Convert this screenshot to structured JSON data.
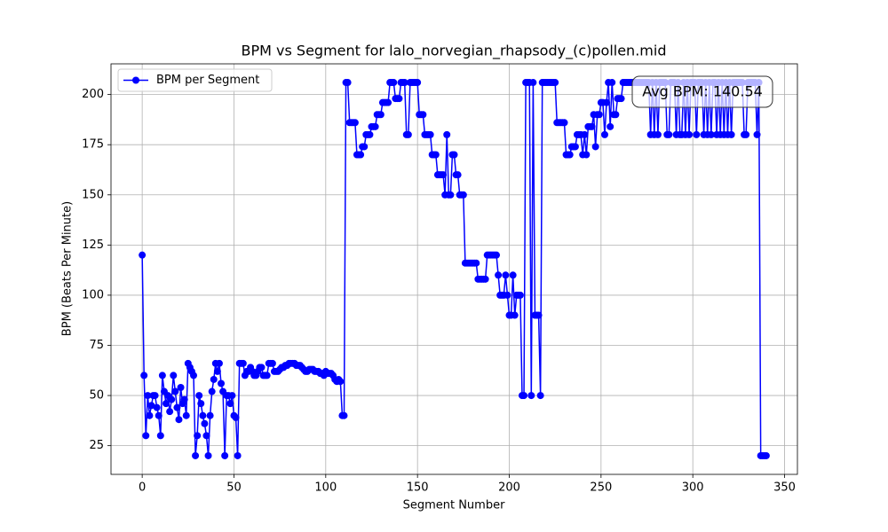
{
  "chart_data": {
    "type": "line",
    "title": "BPM vs Segment for lalo_norvegian_rhapsody_(c)pollen.mid",
    "xlabel": "Segment Number",
    "ylabel": "BPM (Beats Per Minute)",
    "annotation": "Avg BPM: 140.54",
    "legend_loc": "upper left",
    "grid": true,
    "xlim": [
      -17,
      357
    ],
    "ylim": [
      10.7,
      215.3
    ],
    "xticks": [
      0,
      50,
      100,
      150,
      200,
      250,
      300,
      350
    ],
    "yticks": [
      25,
      50,
      75,
      100,
      125,
      150,
      175,
      200
    ],
    "x": [
      0,
      1,
      2,
      3,
      4,
      5,
      6,
      7,
      8,
      9,
      10,
      11,
      12,
      13,
      14,
      15,
      16,
      17,
      18,
      19,
      20,
      21,
      22,
      23,
      24,
      25,
      26,
      27,
      28,
      29,
      30,
      31,
      32,
      33,
      34,
      35,
      36,
      37,
      38,
      39,
      40,
      41,
      42,
      43,
      44,
      45,
      46,
      47,
      48,
      49,
      50,
      51,
      52,
      53,
      54,
      55,
      56,
      57,
      58,
      59,
      60,
      61,
      62,
      63,
      64,
      65,
      66,
      67,
      68,
      69,
      70,
      71,
      72,
      73,
      74,
      75,
      76,
      77,
      78,
      79,
      80,
      81,
      82,
      83,
      84,
      85,
      86,
      87,
      88,
      89,
      90,
      91,
      92,
      93,
      94,
      95,
      96,
      97,
      98,
      99,
      100,
      101,
      102,
      103,
      104,
      105,
      106,
      107,
      108,
      109,
      110,
      111,
      112,
      113,
      114,
      115,
      116,
      117,
      118,
      119,
      120,
      121,
      122,
      123,
      124,
      125,
      126,
      127,
      128,
      129,
      130,
      131,
      132,
      133,
      134,
      135,
      136,
      137,
      138,
      139,
      140,
      141,
      142,
      143,
      144,
      145,
      146,
      147,
      148,
      149,
      150,
      151,
      152,
      153,
      154,
      155,
      156,
      157,
      158,
      159,
      160,
      161,
      162,
      163,
      164,
      165,
      166,
      167,
      168,
      169,
      170,
      171,
      172,
      173,
      174,
      175,
      176,
      177,
      178,
      179,
      180,
      181,
      182,
      183,
      184,
      185,
      186,
      187,
      188,
      189,
      190,
      191,
      192,
      193,
      194,
      195,
      196,
      197,
      198,
      199,
      200,
      201,
      202,
      203,
      204,
      205,
      206,
      207,
      208,
      209,
      210,
      211,
      212,
      213,
      214,
      215,
      216,
      217,
      218,
      219,
      220,
      221,
      222,
      223,
      224,
      225,
      226,
      227,
      228,
      229,
      230,
      231,
      232,
      233,
      234,
      235,
      236,
      237,
      238,
      239,
      240,
      241,
      242,
      243,
      244,
      245,
      246,
      247,
      248,
      249,
      250,
      251,
      252,
      253,
      254,
      255,
      256,
      257,
      258,
      259,
      260,
      261,
      262,
      263,
      264,
      265,
      266,
      267,
      268,
      269,
      270,
      271,
      272,
      273,
      274,
      275,
      276,
      277,
      278,
      279,
      280,
      281,
      282,
      283,
      284,
      285,
      286,
      287,
      288,
      289,
      290,
      291,
      292,
      293,
      294,
      295,
      296,
      297,
      298,
      299,
      300,
      301,
      302,
      303,
      304,
      305,
      306,
      307,
      308,
      309,
      310,
      311,
      312,
      313,
      314,
      315,
      316,
      317,
      318,
      319,
      320,
      321,
      322,
      323,
      324,
      325,
      326,
      327,
      328,
      329,
      330,
      331,
      332,
      333,
      334,
      335,
      336,
      337,
      338,
      339,
      340
    ],
    "series": [
      {
        "name": "BPM per Segment",
        "color": "#0000ff",
        "values": [
          120,
          60,
          30,
          50,
          40,
          45,
          50,
          50,
          44,
          40,
          30,
          60,
          52,
          46,
          50,
          42,
          48,
          60,
          52,
          44,
          38,
          54,
          46,
          48,
          40,
          66,
          64,
          62,
          60,
          20,
          30,
          50,
          46,
          40,
          36,
          30,
          20,
          40,
          52,
          58,
          66,
          62,
          66,
          56,
          52,
          20,
          50,
          50,
          46,
          50,
          40,
          39,
          20,
          66,
          66,
          66,
          60,
          62,
          62,
          64,
          62,
          60,
          60,
          62,
          64,
          64,
          60,
          60,
          60,
          66,
          66,
          66,
          62,
          62,
          62,
          63,
          64,
          64,
          65,
          65,
          66,
          66,
          66,
          66,
          65,
          65,
          65,
          64,
          63,
          62,
          62,
          63,
          63,
          63,
          62,
          62,
          62,
          61,
          61,
          60,
          62,
          61,
          61,
          61,
          60,
          58,
          57,
          58,
          57,
          40,
          40,
          206,
          206,
          186,
          186,
          186,
          186,
          170,
          170,
          170,
          174,
          174,
          180,
          180,
          180,
          184,
          184,
          184,
          190,
          190,
          190,
          196,
          196,
          196,
          196,
          206,
          206,
          206,
          198,
          198,
          198,
          206,
          206,
          206,
          180,
          180,
          206,
          206,
          206,
          206,
          206,
          190,
          190,
          190,
          180,
          180,
          180,
          180,
          170,
          170,
          170,
          160,
          160,
          160,
          160,
          150,
          180,
          150,
          150,
          170,
          170,
          160,
          160,
          150,
          150,
          150,
          116,
          116,
          116,
          116,
          116,
          116,
          116,
          108,
          108,
          108,
          108,
          108,
          120,
          120,
          120,
          120,
          120,
          120,
          110,
          100,
          100,
          100,
          110,
          100,
          90,
          90,
          110,
          90,
          100,
          100,
          100,
          50,
          50,
          206,
          206,
          206,
          50,
          206,
          90,
          90,
          90,
          50,
          206,
          206,
          206,
          206,
          206,
          206,
          206,
          206,
          186,
          186,
          186,
          186,
          186,
          170,
          170,
          170,
          174,
          174,
          174,
          180,
          180,
          180,
          170,
          180,
          170,
          184,
          184,
          184,
          190,
          174,
          190,
          190,
          196,
          196,
          180,
          196,
          206,
          184,
          206,
          190,
          190,
          198,
          198,
          198,
          206,
          206,
          206,
          206,
          206,
          206,
          206,
          206,
          206,
          206,
          206,
          206,
          206,
          206,
          206,
          180,
          206,
          180,
          206,
          180,
          206,
          206,
          206,
          206,
          180,
          180,
          206,
          206,
          206,
          180,
          206,
          180,
          180,
          206,
          180,
          206,
          180,
          206,
          206,
          206,
          180,
          206,
          206,
          206,
          180,
          206,
          180,
          206,
          180,
          206,
          206,
          180,
          206,
          180,
          206,
          180,
          206,
          180,
          206,
          180,
          206,
          206,
          206,
          206,
          206,
          206,
          180,
          180,
          206,
          206,
          206,
          206,
          206,
          180,
          206,
          20,
          20,
          20,
          20
        ]
      }
    ]
  }
}
